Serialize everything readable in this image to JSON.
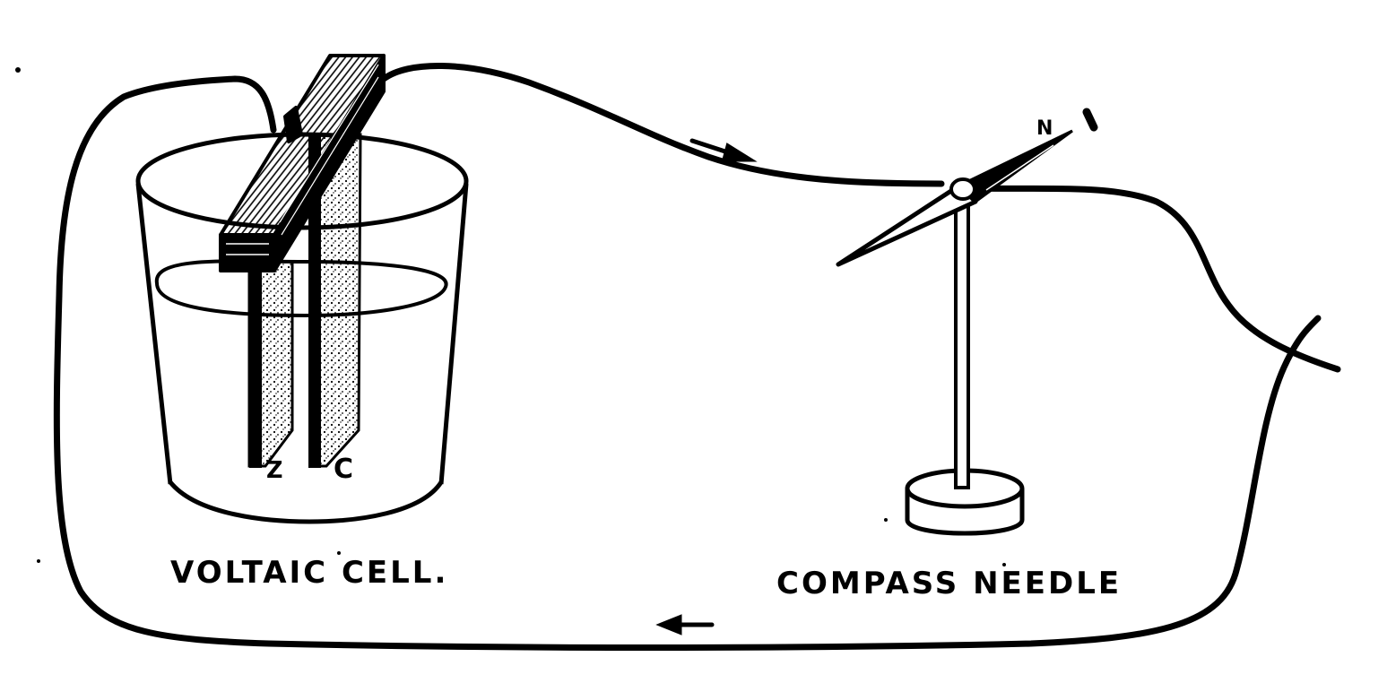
{
  "labels": {
    "cell_caption": "VOLTAIC CELL.",
    "compass_caption": "COMPASS NEEDLE",
    "zinc": "Z",
    "copper": "C",
    "north": "N"
  },
  "colors": {
    "ink": "#000000",
    "paper": "#ffffff",
    "stipple": "#000000"
  },
  "icons": {
    "current_arrow_top": "arrow-right-icon",
    "current_arrow_bottom": "arrow-left-icon"
  }
}
